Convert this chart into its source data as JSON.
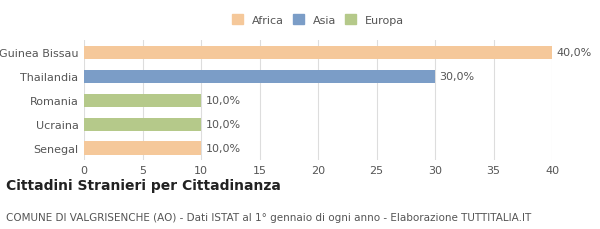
{
  "categories": [
    "Guinea Bissau",
    "Thailandia",
    "Romania",
    "Ucraina",
    "Senegal"
  ],
  "values": [
    40.0,
    30.0,
    10.0,
    10.0,
    10.0
  ],
  "colors": [
    "#f5c89a",
    "#7b9dc7",
    "#b5c98a",
    "#b5c98a",
    "#f5c89a"
  ],
  "bar_labels": [
    "40,0%",
    "30,0%",
    "10,0%",
    "10,0%",
    "10,0%"
  ],
  "legend_labels": [
    "Africa",
    "Asia",
    "Europa"
  ],
  "legend_colors": [
    "#f5c89a",
    "#7b9dc7",
    "#b5c98a"
  ],
  "xlim": [
    0,
    40
  ],
  "xticks": [
    0,
    5,
    10,
    15,
    20,
    25,
    30,
    35,
    40
  ],
  "title_bold": "Cittadini Stranieri per Cittadinanza",
  "subtitle": "COMUNE DI VALGRISENCHE (AO) - Dati ISTAT al 1° gennaio di ogni anno - Elaborazione TUTTITALIA.IT",
  "background_color": "#ffffff",
  "grid_color": "#dddddd",
  "text_color": "#555555",
  "label_fontsize": 8,
  "tick_fontsize": 8,
  "title_fontsize": 10,
  "subtitle_fontsize": 7.5
}
